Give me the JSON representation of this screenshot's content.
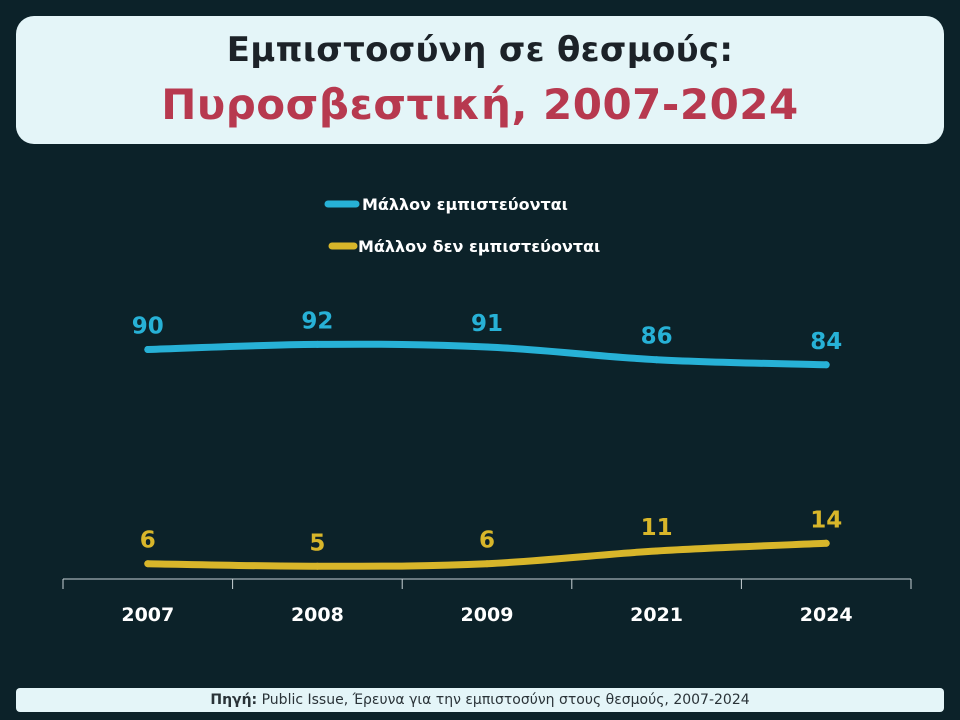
{
  "header": {
    "title": "Εμπιστοσύνη σε θεσμούς:",
    "subtitle": "Πυροσβεστική, 2007-2024"
  },
  "footer": {
    "source_label": "Πηγή:",
    "source_text": "Public Issue, Έρευνα για την εμπιστοσύνη στους θεσμούς, 2007-2024"
  },
  "colors": {
    "background": "#0c2229",
    "panel": "#e4f5f8",
    "title": "#1c2228",
    "subtitle": "#b7394f",
    "trust": "#27b1d6",
    "distrust": "#d8b62a",
    "axis": "#c9d3d6",
    "legend_text": "#ffffff",
    "tick_text": "#ffffff"
  },
  "chart_data": {
    "type": "line",
    "title": "Εμπιστοσύνη σε θεσμούς: Πυροσβεστική, 2007-2024",
    "xlabel": "",
    "ylabel": "",
    "categories": [
      "2007",
      "2008",
      "2009",
      "2021",
      "2024"
    ],
    "ylim": [
      0,
      100
    ],
    "grid": false,
    "legend_position": "top-center",
    "series": [
      {
        "name": "Μάλλον εμπιστεύονται",
        "color": "#27b1d6",
        "values": [
          90,
          92,
          91,
          86,
          84
        ]
      },
      {
        "name": "Μάλλον δεν εμπιστεύονται",
        "color": "#d8b62a",
        "values": [
          6,
          5,
          6,
          11,
          14
        ]
      }
    ]
  }
}
